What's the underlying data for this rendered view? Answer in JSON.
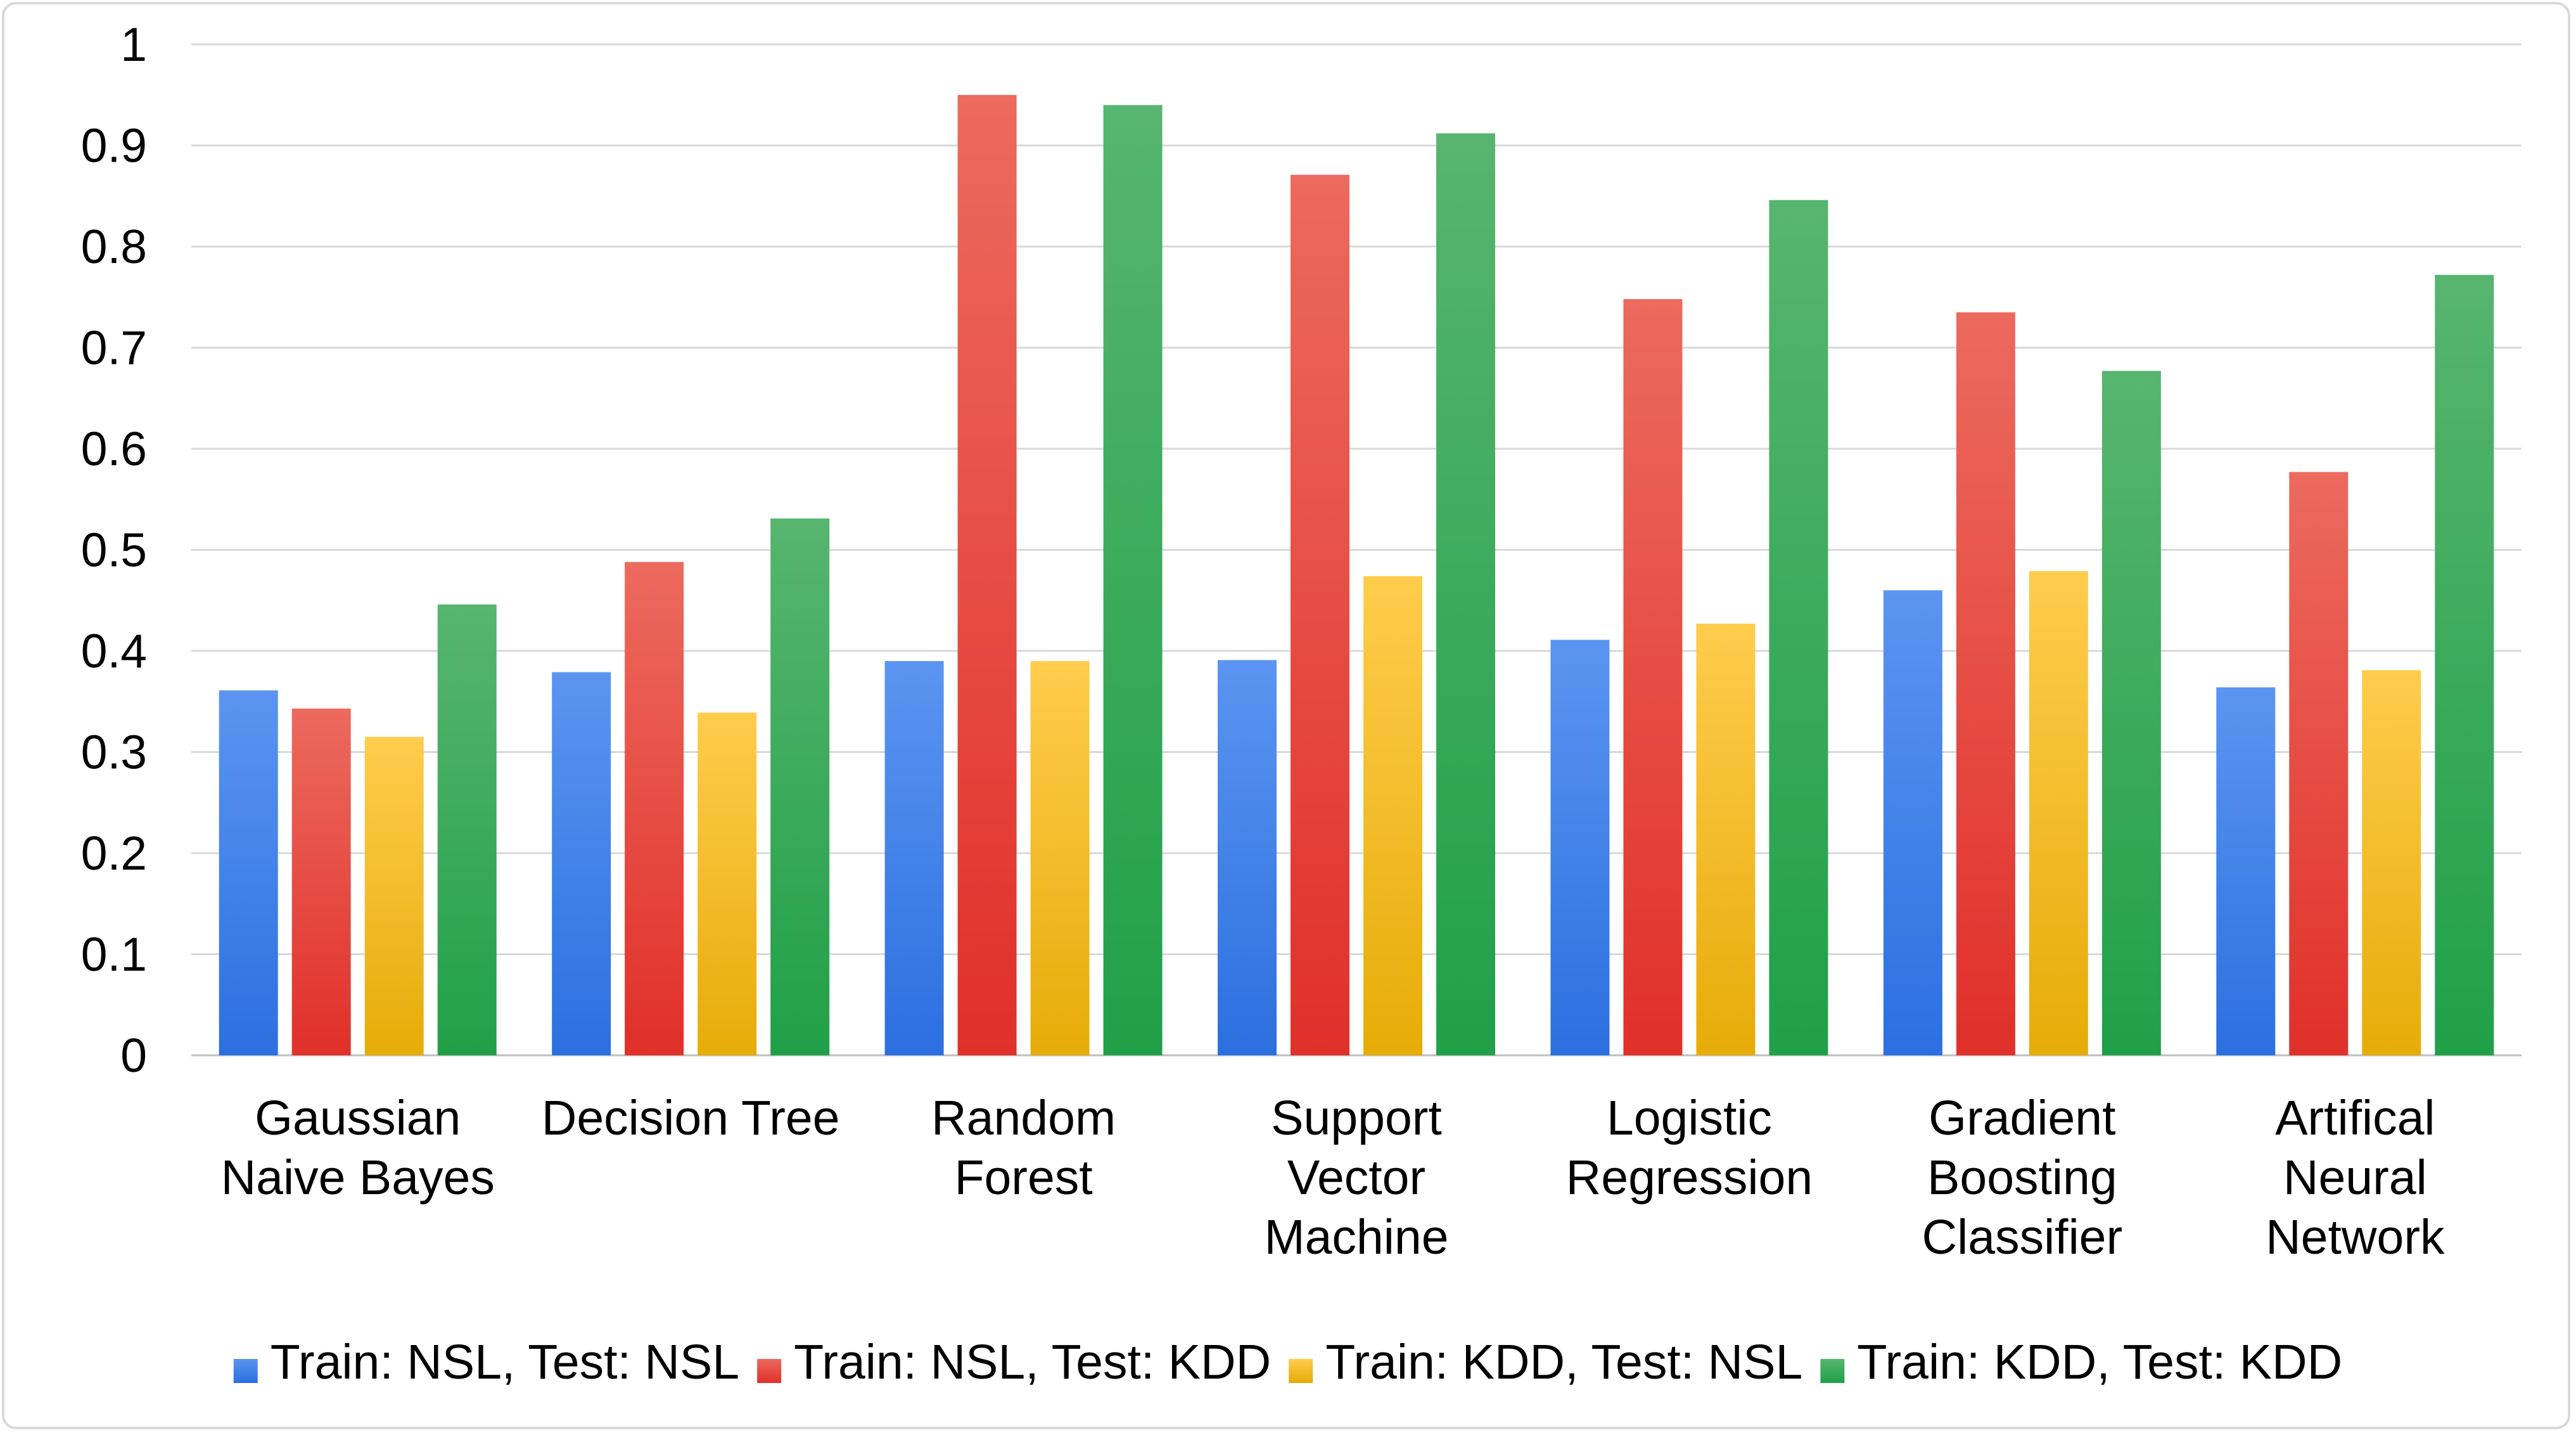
{
  "chart_data": {
    "type": "bar",
    "title": "",
    "xlabel": "",
    "ylabel": "",
    "ylim": [
      0,
      1
    ],
    "yticks": [
      "0",
      "0.1",
      "0.2",
      "0.3",
      "0.4",
      "0.5",
      "0.6",
      "0.7",
      "0.8",
      "0.9",
      "1"
    ],
    "grid": true,
    "legend_position": "bottom",
    "categories": [
      [
        "Gaussian",
        "Naive Bayes"
      ],
      [
        "Decision Tree"
      ],
      [
        "Random",
        "Forest"
      ],
      [
        "Support",
        "Vector",
        "Machine"
      ],
      [
        "Logistic",
        "Regression"
      ],
      [
        "Gradient",
        "Boosting",
        "Classifier"
      ],
      [
        "Artifical",
        "Neural",
        "Network"
      ]
    ],
    "series": [
      {
        "name": "Train: NSL, Test: NSL",
        "color_top": "#5b95f0",
        "color_bottom": "#2c6fe0",
        "values": [
          0.361,
          0.379,
          0.39,
          0.391,
          0.411,
          0.46,
          0.364
        ]
      },
      {
        "name": "Train: NSL, Test: KDD",
        "color_top": "#ec6a5e",
        "color_bottom": "#e0302a",
        "values": [
          0.343,
          0.488,
          0.95,
          0.871,
          0.748,
          0.735,
          0.577
        ]
      },
      {
        "name": "Train: KDD, Test: NSL",
        "color_top": "#ffcc4d",
        "color_bottom": "#e6ac08",
        "values": [
          0.315,
          0.339,
          0.39,
          0.474,
          0.427,
          0.479,
          0.381
        ]
      },
      {
        "name": "Train: KDD, Test: KDD",
        "color_top": "#57b56f",
        "color_bottom": "#20a048",
        "values": [
          0.446,
          0.531,
          0.94,
          0.912,
          0.846,
          0.677,
          0.772
        ]
      }
    ]
  }
}
